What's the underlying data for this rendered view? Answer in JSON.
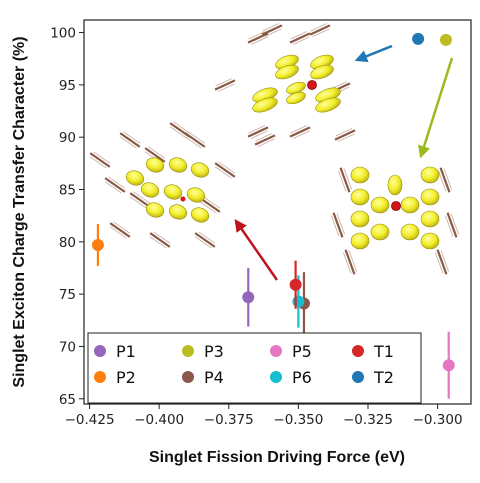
{
  "chart_data": {
    "type": "scatter",
    "xlabel": "Singlet Fission Driving Force (eV)",
    "ylabel": "Singlet Exciton Charge Transfer Character (%)",
    "xlim": [
      -0.427,
      -0.288
    ],
    "ylim": [
      64.5,
      101.2
    ],
    "xticks": [
      -0.425,
      -0.4,
      -0.375,
      -0.35,
      -0.325,
      -0.3
    ],
    "xtick_labels": [
      "−0.425",
      "−0.400",
      "−0.375",
      "−0.350",
      "−0.325",
      "−0.300"
    ],
    "yticks": [
      65,
      70,
      75,
      80,
      85,
      90,
      95,
      100
    ],
    "ytick_labels": [
      "65",
      "70",
      "75",
      "80",
      "85",
      "90",
      "95",
      "100"
    ],
    "grid": false,
    "legend_placement": "bottom, inside plot area (3 rows x 4 columns)",
    "series": [
      {
        "name": "P1",
        "color": "#9467bd",
        "x": -0.368,
        "y": 74.7,
        "yerr": 2.8
      },
      {
        "name": "P2",
        "color": "#ff7f0e",
        "x": -0.422,
        "y": 79.7,
        "yerr": 2.0
      },
      {
        "name": "P3",
        "color": "#bcbd22",
        "x": -0.297,
        "y": 99.3,
        "yerr": 0
      },
      {
        "name": "P4",
        "color": "#8c564b",
        "x": -0.348,
        "y": 74.1,
        "yerr": 3.0
      },
      {
        "name": "P5",
        "color": "#e377c2",
        "x": -0.296,
        "y": 68.2,
        "yerr": 3.2
      },
      {
        "name": "P6",
        "color": "#17becf",
        "x": -0.35,
        "y": 74.3,
        "yerr": 2.5
      },
      {
        "name": "T1",
        "color": "#d62728",
        "x": -0.351,
        "y": 75.9,
        "yerr": 2.3
      },
      {
        "name": "T2",
        "color": "#1f77b4",
        "x": -0.307,
        "y": 99.4,
        "yerr": 0
      }
    ],
    "annotations": [
      {
        "type": "arrow",
        "color": "#1f77b4",
        "description": "from T2 toward top crystal-structure inset"
      },
      {
        "type": "arrow",
        "color": "#9aba1e",
        "description": "from P3 toward right crystal-structure inset"
      },
      {
        "type": "arrow",
        "color": "#c0141c",
        "description": "from T1 toward left crystal-structure inset"
      },
      {
        "type": "image",
        "description": "molecular crystal packing with yellow orbital isosurfaces (top, right, left insets)"
      }
    ]
  }
}
